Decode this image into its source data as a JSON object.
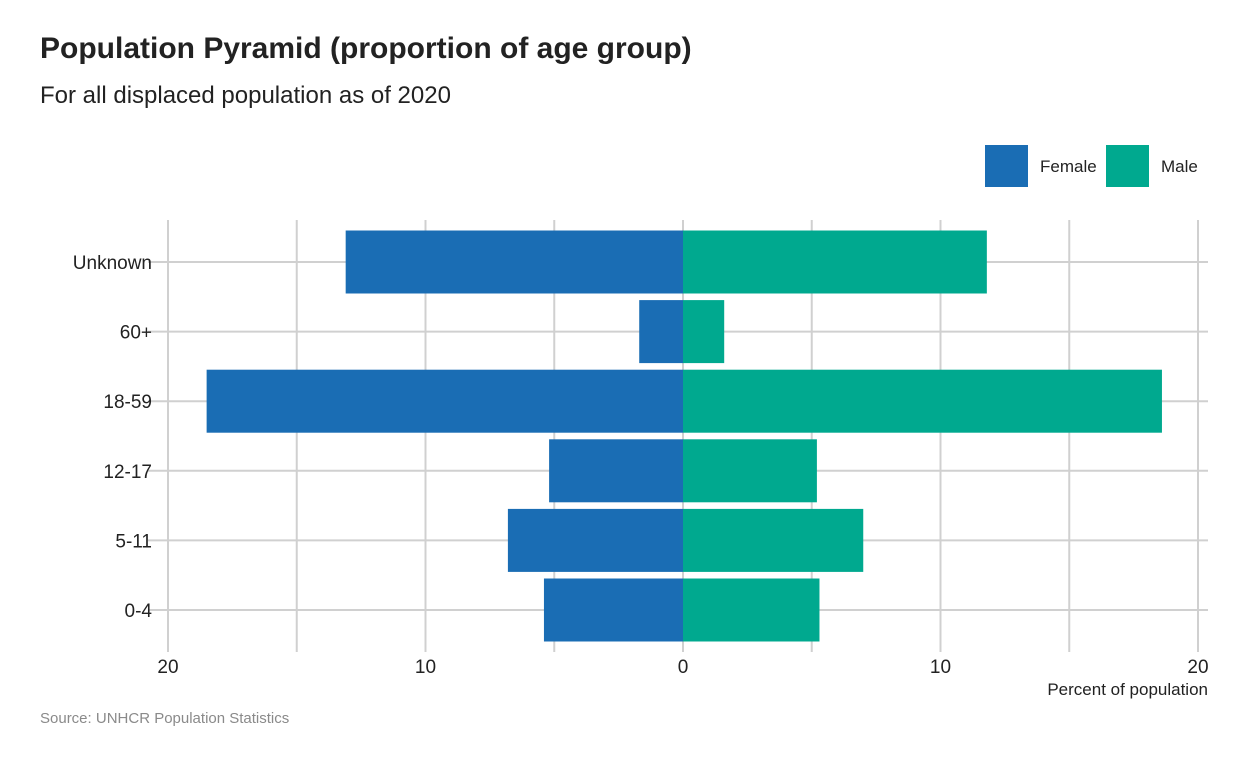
{
  "chart_data": {
    "type": "bar",
    "orientation": "horizontal",
    "title": "Population Pyramid (proportion of age group)",
    "subtitle": "For all displaced population as of 2020",
    "source": "Source: UNHCR Population Statistics",
    "xlabel": "Percent of population",
    "ylabel": "",
    "categories": [
      "Unknown",
      "60+",
      "18-59",
      "12-17",
      "5-11",
      "0-4"
    ],
    "series": [
      {
        "name": "Female",
        "color": "#1a6db4",
        "values": [
          13.1,
          1.7,
          18.5,
          5.2,
          6.8,
          5.4
        ]
      },
      {
        "name": "Male",
        "color": "#00a98f",
        "values": [
          11.8,
          1.6,
          18.6,
          5.2,
          7.0,
          5.3
        ]
      }
    ],
    "xlim": [
      -20,
      20
    ],
    "x_ticks": [
      -20,
      -10,
      0,
      10,
      20
    ],
    "x_tick_labels": [
      "20",
      "10",
      "0",
      "10",
      "20"
    ],
    "grid": true,
    "legend_position": "top-right"
  }
}
